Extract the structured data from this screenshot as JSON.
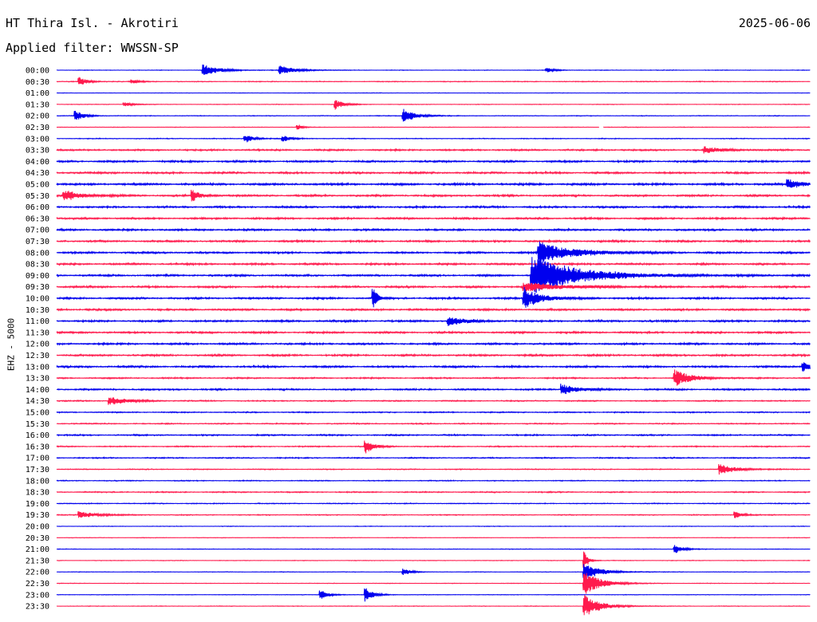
{
  "header": {
    "station": "HT Thira Isl. - Akrotiri",
    "date": "2025-06-06",
    "filter": "Applied filter: WWSSN-SP",
    "channel": "EHZ - 5000"
  },
  "colors": {
    "odd": "#0000ee",
    "even": "#ff1a4d"
  },
  "chart_data": {
    "type": "line",
    "title": "HT Thira Isl. - Akrotiri",
    "subtitle": "Applied filter: WWSSN-SP",
    "ylabel": "EHZ - 5000",
    "trace_minutes": 30,
    "rows": [
      {
        "label": "00:00",
        "color": "#0000ee",
        "noise": 0.25,
        "events": [
          {
            "t": 0.195,
            "amp": 1.0,
            "dur": 0.02
          },
          {
            "t": 0.296,
            "amp": 0.8,
            "dur": 0.02
          },
          {
            "t": 0.65,
            "amp": 0.4,
            "dur": 0.01
          }
        ]
      },
      {
        "label": "00:30",
        "color": "#ff1a4d",
        "noise": 0.35,
        "events": [
          {
            "t": 0.03,
            "amp": 0.8,
            "dur": 0.01
          },
          {
            "t": 0.1,
            "amp": 0.35,
            "dur": 0.01
          }
        ]
      },
      {
        "label": "01:00",
        "color": "#0000ee",
        "noise": 0.2,
        "events": []
      },
      {
        "label": "01:30",
        "color": "#ff1a4d",
        "noise": 0.25,
        "events": [
          {
            "t": 0.09,
            "amp": 0.4,
            "dur": 0.01
          },
          {
            "t": 0.37,
            "amp": 1.0,
            "dur": 0.01
          }
        ]
      },
      {
        "label": "02:00",
        "color": "#0000ee",
        "noise": 0.3,
        "events": [
          {
            "t": 0.025,
            "amp": 1.0,
            "dur": 0.01
          },
          {
            "t": 0.46,
            "amp": 1.3,
            "dur": 0.015
          }
        ]
      },
      {
        "label": "02:30",
        "color": "#ff1a4d",
        "noise": 0.25,
        "events": [
          {
            "t": 0.32,
            "amp": 0.6,
            "dur": 0.005
          }
        ],
        "gap": [
          0.72,
          0.725
        ]
      },
      {
        "label": "03:00",
        "color": "#0000ee",
        "noise": 0.35,
        "events": [
          {
            "t": 0.25,
            "amp": 0.8,
            "dur": 0.01
          },
          {
            "t": 0.3,
            "amp": 0.6,
            "dur": 0.01
          }
        ]
      },
      {
        "label": "03:30",
        "color": "#ff1a4d",
        "noise": 0.7,
        "events": [
          {
            "t": 0.86,
            "amp": 0.6,
            "dur": 0.02
          }
        ]
      },
      {
        "label": "04:00",
        "color": "#0000ee",
        "noise": 0.8,
        "events": []
      },
      {
        "label": "04:30",
        "color": "#ff1a4d",
        "noise": 0.8,
        "events": []
      },
      {
        "label": "05:00",
        "color": "#0000ee",
        "noise": 0.9,
        "events": [
          {
            "t": 0.97,
            "amp": 0.8,
            "dur": 0.02
          }
        ]
      },
      {
        "label": "05:30",
        "color": "#ff1a4d",
        "noise": 0.8,
        "events": [
          {
            "t": 0.01,
            "amp": 1.0,
            "dur": 0.02
          },
          {
            "t": 0.18,
            "amp": 1.1,
            "dur": 0.01
          }
        ]
      },
      {
        "label": "06:00",
        "color": "#0000ee",
        "noise": 0.8,
        "events": []
      },
      {
        "label": "06:30",
        "color": "#ff1a4d",
        "noise": 0.8,
        "events": []
      },
      {
        "label": "07:00",
        "color": "#0000ee",
        "noise": 0.8,
        "events": []
      },
      {
        "label": "07:30",
        "color": "#ff1a4d",
        "noise": 0.8,
        "events": []
      },
      {
        "label": "08:00",
        "color": "#0000ee",
        "noise": 0.8,
        "events": [
          {
            "t": 0.64,
            "amp": 2.0,
            "dur": 0.04
          }
        ]
      },
      {
        "label": "08:30",
        "color": "#ff1a4d",
        "noise": 0.8,
        "events": []
      },
      {
        "label": "09:00",
        "color": "#0000ee",
        "noise": 0.8,
        "events": [
          {
            "t": 0.63,
            "amp": 3.5,
            "dur": 0.06
          }
        ]
      },
      {
        "label": "09:30",
        "color": "#ff1a4d",
        "noise": 0.8,
        "events": [
          {
            "t": 0.62,
            "amp": 0.8,
            "dur": 0.05
          }
        ]
      },
      {
        "label": "10:00",
        "color": "#0000ee",
        "noise": 0.8,
        "events": [
          {
            "t": 0.42,
            "amp": 2.0,
            "dur": 0.005
          },
          {
            "t": 0.62,
            "amp": 2.0,
            "dur": 0.02
          }
        ]
      },
      {
        "label": "10:30",
        "color": "#ff1a4d",
        "noise": 0.8,
        "events": []
      },
      {
        "label": "11:00",
        "color": "#0000ee",
        "noise": 0.8,
        "events": [
          {
            "t": 0.52,
            "amp": 0.8,
            "dur": 0.02
          }
        ]
      },
      {
        "label": "11:30",
        "color": "#ff1a4d",
        "noise": 0.8,
        "events": []
      },
      {
        "label": "12:00",
        "color": "#0000ee",
        "noise": 0.8,
        "events": []
      },
      {
        "label": "12:30",
        "color": "#ff1a4d",
        "noise": 0.8,
        "events": []
      },
      {
        "label": "13:00",
        "color": "#0000ee",
        "noise": 0.8,
        "events": [
          {
            "t": 0.99,
            "amp": 0.8,
            "dur": 0.01
          }
        ]
      },
      {
        "label": "13:30",
        "color": "#ff1a4d",
        "noise": 0.6,
        "events": [
          {
            "t": 0.82,
            "amp": 1.5,
            "dur": 0.02
          }
        ]
      },
      {
        "label": "14:00",
        "color": "#0000ee",
        "noise": 0.7,
        "events": [
          {
            "t": 0.67,
            "amp": 1.0,
            "dur": 0.02
          }
        ]
      },
      {
        "label": "14:30",
        "color": "#ff1a4d",
        "noise": 0.5,
        "events": [
          {
            "t": 0.07,
            "amp": 0.8,
            "dur": 0.02
          }
        ]
      },
      {
        "label": "15:00",
        "color": "#0000ee",
        "noise": 0.5,
        "events": []
      },
      {
        "label": "15:30",
        "color": "#ff1a4d",
        "noise": 0.5,
        "events": []
      },
      {
        "label": "16:00",
        "color": "#0000ee",
        "noise": 0.6,
        "events": []
      },
      {
        "label": "16:30",
        "color": "#ff1a4d",
        "noise": 0.5,
        "events": [
          {
            "t": 0.41,
            "amp": 1.3,
            "dur": 0.01
          }
        ]
      },
      {
        "label": "17:00",
        "color": "#0000ee",
        "noise": 0.5,
        "events": []
      },
      {
        "label": "17:30",
        "color": "#ff1a4d",
        "noise": 0.4,
        "events": [
          {
            "t": 0.88,
            "amp": 0.9,
            "dur": 0.02
          }
        ]
      },
      {
        "label": "18:00",
        "color": "#0000ee",
        "noise": 0.4,
        "events": []
      },
      {
        "label": "18:30",
        "color": "#ff1a4d",
        "noise": 0.5,
        "events": []
      },
      {
        "label": "19:00",
        "color": "#0000ee",
        "noise": 0.4,
        "events": []
      },
      {
        "label": "19:30",
        "color": "#ff1a4d",
        "noise": 0.4,
        "events": [
          {
            "t": 0.03,
            "amp": 0.7,
            "dur": 0.02
          },
          {
            "t": 0.9,
            "amp": 0.6,
            "dur": 0.01
          }
        ]
      },
      {
        "label": "20:00",
        "color": "#0000ee",
        "noise": 0.25,
        "events": []
      },
      {
        "label": "20:30",
        "color": "#ff1a4d",
        "noise": 0.25,
        "events": []
      },
      {
        "label": "21:00",
        "color": "#0000ee",
        "noise": 0.25,
        "events": [
          {
            "t": 0.82,
            "amp": 0.8,
            "dur": 0.01
          }
        ]
      },
      {
        "label": "21:30",
        "color": "#ff1a4d",
        "noise": 0.25,
        "events": [
          {
            "t": 0.7,
            "amp": 1.8,
            "dur": 0.005
          }
        ]
      },
      {
        "label": "22:00",
        "color": "#0000ee",
        "noise": 0.25,
        "events": [
          {
            "t": 0.7,
            "amp": 1.5,
            "dur": 0.02
          },
          {
            "t": 0.46,
            "amp": 0.6,
            "dur": 0.01
          }
        ]
      },
      {
        "label": "22:30",
        "color": "#ff1a4d",
        "noise": 0.25,
        "events": [
          {
            "t": 0.7,
            "amp": 2.2,
            "dur": 0.02
          }
        ]
      },
      {
        "label": "23:00",
        "color": "#0000ee",
        "noise": 0.25,
        "events": [
          {
            "t": 0.35,
            "amp": 0.9,
            "dur": 0.01
          },
          {
            "t": 0.41,
            "amp": 1.2,
            "dur": 0.01
          }
        ]
      },
      {
        "label": "23:30",
        "color": "#ff1a4d",
        "noise": 0.25,
        "events": [
          {
            "t": 0.7,
            "amp": 2.0,
            "dur": 0.02
          }
        ]
      }
    ]
  }
}
